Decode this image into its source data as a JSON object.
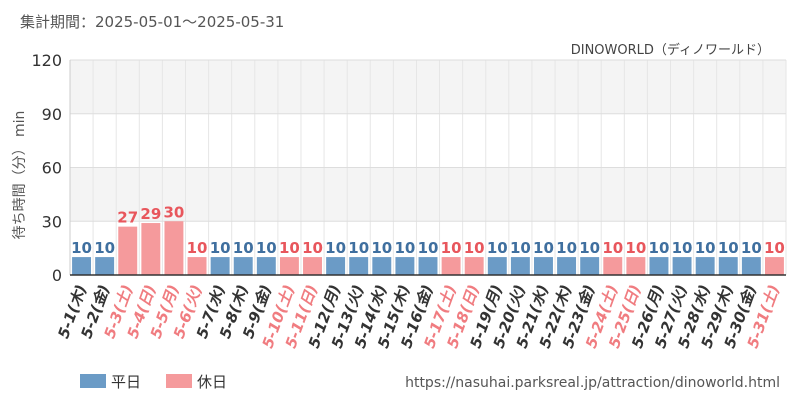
{
  "header": {
    "period": "集計期間：2025-05-01～2025-05-31",
    "attraction": "DINOWORLD（ディノワールド）"
  },
  "legend": {
    "weekday": "平日",
    "holiday": "休日"
  },
  "footer": {
    "url": "https://nasuhai.parksreal.jp/attraction/dinoworld.html"
  },
  "colors": {
    "weekday": "#6b9bc6",
    "holiday": "#f59a9c",
    "weekday_label": "#3f6f9f",
    "holiday_label": "#e8565c",
    "weekday_tick": "#333333",
    "holiday_tick": "#f07c80"
  },
  "chart_data": {
    "type": "bar",
    "ylabel": "待ち時間（分） min",
    "ylim": [
      0,
      120
    ],
    "yticks": [
      "0",
      "30",
      "60",
      "90",
      "120"
    ],
    "grid": true,
    "legend_position": "bottom-left",
    "categories": [
      "5-1(木)",
      "5-2(金)",
      "5-3(土)",
      "5-4(日)",
      "5-5(月)",
      "5-6(火)",
      "5-7(水)",
      "5-8(木)",
      "5-9(金)",
      "5-10(土)",
      "5-11(日)",
      "5-12(月)",
      "5-13(火)",
      "5-14(水)",
      "5-15(木)",
      "5-16(金)",
      "5-17(土)",
      "5-18(日)",
      "5-19(月)",
      "5-20(火)",
      "5-21(水)",
      "5-22(木)",
      "5-23(金)",
      "5-24(土)",
      "5-25(日)",
      "5-26(月)",
      "5-27(火)",
      "5-28(水)",
      "5-29(木)",
      "5-30(金)",
      "5-31(土)"
    ],
    "values": [
      10,
      10,
      27,
      29,
      30,
      10,
      10,
      10,
      10,
      10,
      10,
      10,
      10,
      10,
      10,
      10,
      10,
      10,
      10,
      10,
      10,
      10,
      10,
      10,
      10,
      10,
      10,
      10,
      10,
      10,
      10
    ],
    "holiday": [
      false,
      false,
      true,
      true,
      true,
      true,
      false,
      false,
      false,
      true,
      true,
      false,
      false,
      false,
      false,
      false,
      true,
      true,
      false,
      false,
      false,
      false,
      false,
      true,
      true,
      false,
      false,
      false,
      false,
      false,
      true
    ]
  }
}
